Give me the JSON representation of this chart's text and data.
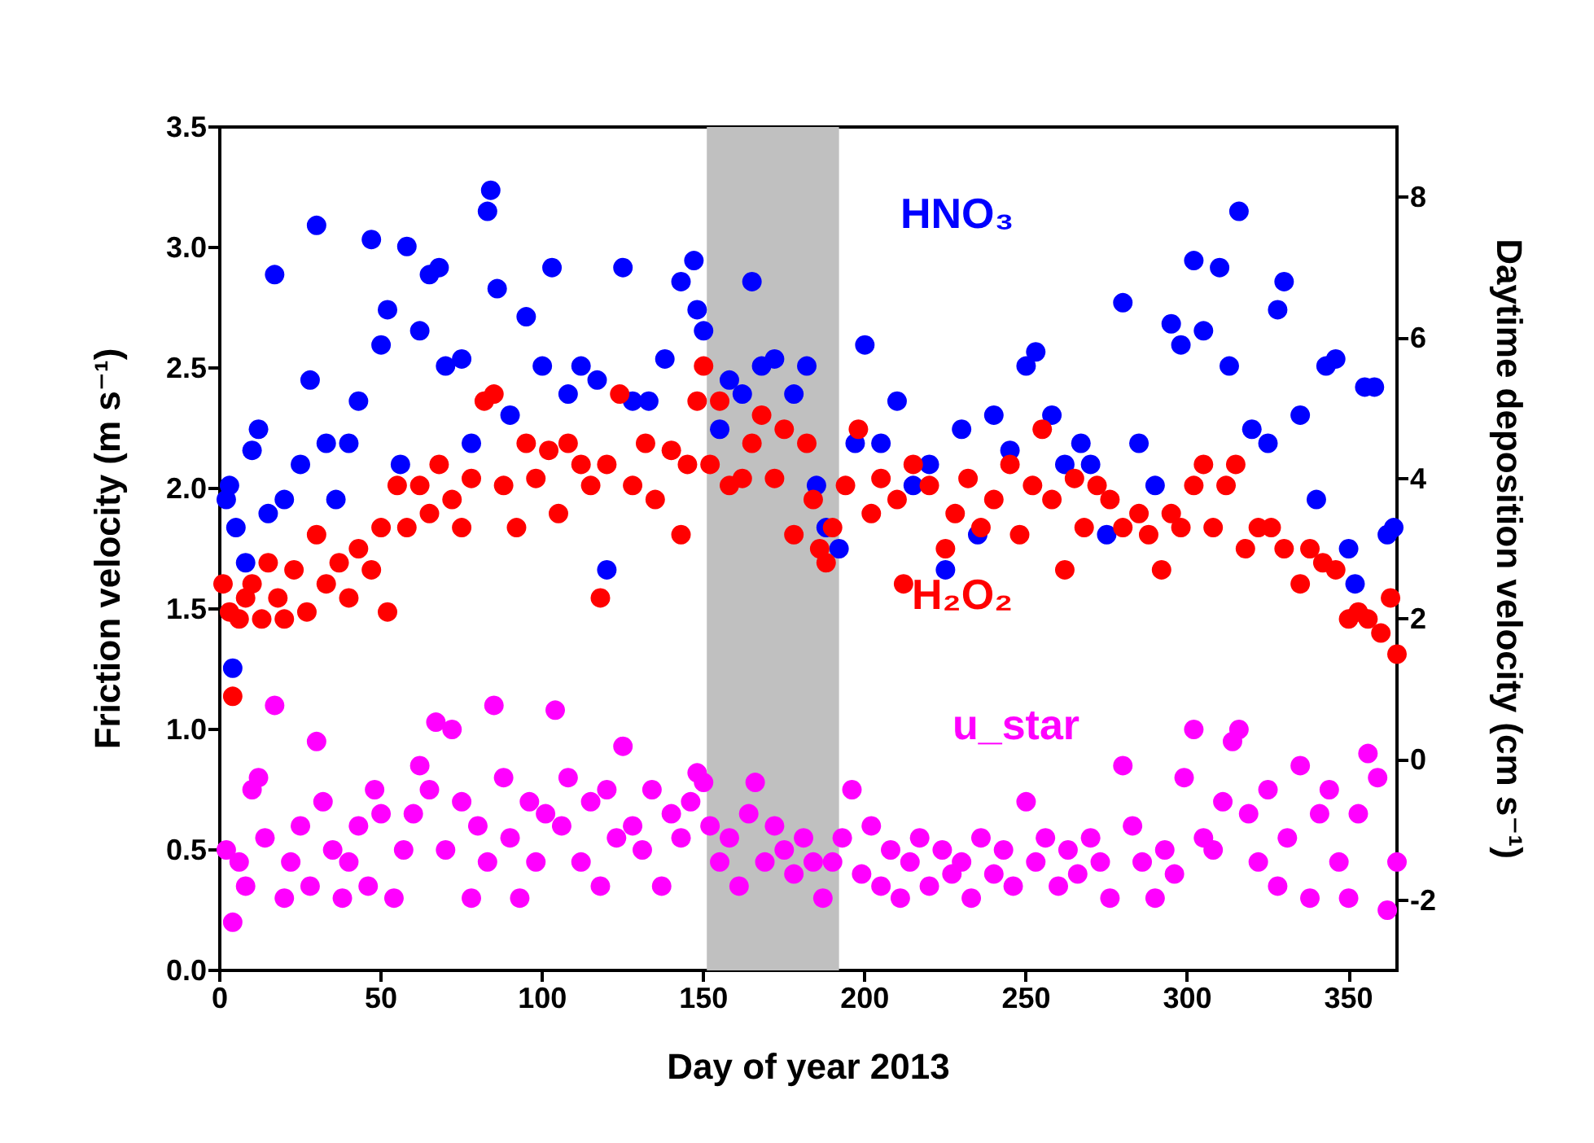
{
  "chart_data": {
    "type": "scatter",
    "xlabel": "Day of year 2013",
    "ylabel": "Friction velocity (m s⁻¹)",
    "y2label": "Daytime deposition velocity (cm s⁻¹)",
    "xlim": [
      0,
      365
    ],
    "xticks": [
      0,
      50,
      100,
      150,
      200,
      250,
      300,
      350
    ],
    "ylim": [
      0,
      3.5
    ],
    "yticks": [
      {
        "value": 0,
        "label": "0.0"
      },
      0.5,
      {
        "value": 1,
        "label": "1.0"
      },
      1.5,
      {
        "value": 2,
        "label": "2.0"
      },
      2.5,
      {
        "value": 3,
        "label": "3.0"
      },
      3.5
    ],
    "y2lim": [
      -3,
      9
    ],
    "y2ticks": [
      -2,
      0,
      2,
      4,
      6,
      8
    ],
    "grid": false,
    "legend": false,
    "marker": "circle",
    "bands": [
      {
        "axis": "x",
        "from": 151,
        "to": 192,
        "color": "#c0c0c0"
      }
    ],
    "series": [
      {
        "name": "HNO₃",
        "color": "#0000ff",
        "axis": "y2",
        "x": [
          2,
          3,
          5,
          4,
          8,
          10,
          12,
          15,
          17,
          20,
          25,
          28,
          30,
          33,
          36,
          40,
          43,
          47,
          50,
          52,
          56,
          58,
          62,
          65,
          68,
          70,
          75,
          78,
          83,
          84,
          86,
          90,
          95,
          100,
          103,
          108,
          112,
          117,
          120,
          125,
          128,
          133,
          138,
          143,
          147,
          148,
          150,
          155,
          158,
          162,
          165,
          168,
          172,
          178,
          182,
          185,
          188,
          192,
          197,
          200,
          205,
          210,
          215,
          220,
          225,
          230,
          235,
          240,
          245,
          250,
          253,
          258,
          262,
          267,
          270,
          275,
          280,
          285,
          290,
          295,
          298,
          302,
          305,
          310,
          313,
          316,
          320,
          325,
          328,
          330,
          335,
          340,
          343,
          346,
          350,
          352,
          355,
          358,
          362,
          364
        ],
        "values": [
          3.7,
          3.9,
          3.3,
          1.3,
          2.8,
          4.4,
          4.7,
          3.5,
          6.9,
          3.7,
          4.2,
          5.4,
          7.6,
          4.5,
          3.7,
          4.5,
          5.1,
          7.4,
          5.9,
          6.4,
          4.2,
          7.3,
          6.1,
          6.9,
          7.0,
          5.6,
          5.7,
          4.5,
          7.8,
          8.1,
          6.7,
          4.9,
          6.3,
          5.6,
          7.0,
          5.2,
          5.6,
          5.4,
          2.7,
          7.0,
          5.1,
          5.1,
          5.7,
          6.8,
          7.1,
          6.4,
          6.1,
          4.7,
          5.4,
          5.2,
          6.8,
          5.6,
          5.7,
          5.2,
          5.6,
          3.9,
          3.3,
          3.0,
          4.5,
          5.9,
          4.5,
          5.1,
          3.9,
          4.2,
          2.7,
          4.7,
          3.2,
          4.9,
          4.4,
          5.6,
          5.8,
          4.9,
          4.2,
          4.5,
          4.2,
          3.2,
          6.5,
          4.5,
          3.9,
          6.2,
          5.9,
          7.1,
          6.1,
          7.0,
          5.6,
          7.8,
          4.7,
          4.5,
          6.4,
          6.8,
          4.9,
          3.7,
          5.6,
          5.7,
          3.0,
          2.5,
          5.3,
          5.3,
          3.2,
          3.3
        ]
      },
      {
        "name": "H₂O₂",
        "color": "#ff0000",
        "axis": "y2",
        "x": [
          1,
          3,
          4,
          6,
          8,
          10,
          13,
          15,
          18,
          20,
          23,
          27,
          30,
          33,
          37,
          40,
          43,
          47,
          50,
          52,
          55,
          58,
          62,
          65,
          68,
          72,
          75,
          78,
          82,
          85,
          88,
          92,
          95,
          98,
          102,
          105,
          108,
          112,
          115,
          118,
          120,
          124,
          128,
          132,
          135,
          140,
          143,
          145,
          148,
          150,
          152,
          155,
          158,
          162,
          165,
          168,
          172,
          175,
          178,
          182,
          184,
          186,
          188,
          190,
          194,
          198,
          202,
          205,
          210,
          212,
          215,
          220,
          225,
          228,
          232,
          236,
          240,
          245,
          248,
          252,
          255,
          258,
          262,
          265,
          268,
          272,
          276,
          280,
          285,
          288,
          292,
          295,
          298,
          302,
          305,
          308,
          312,
          315,
          318,
          322,
          326,
          330,
          335,
          338,
          342,
          346,
          350,
          353,
          356,
          360,
          363,
          365
        ],
        "values": [
          2.5,
          2.1,
          0.9,
          2.0,
          2.3,
          2.5,
          2.0,
          2.8,
          2.3,
          2.0,
          2.7,
          2.1,
          3.2,
          2.5,
          2.8,
          2.3,
          3.0,
          2.7,
          3.3,
          2.1,
          3.9,
          3.3,
          3.9,
          3.5,
          4.2,
          3.7,
          3.3,
          4.0,
          5.1,
          5.2,
          3.9,
          3.3,
          4.5,
          4.0,
          4.4,
          3.5,
          4.5,
          4.2,
          3.9,
          2.3,
          4.2,
          5.2,
          3.9,
          4.5,
          3.7,
          4.4,
          3.2,
          4.2,
          5.1,
          5.6,
          4.2,
          5.1,
          3.9,
          4.0,
          4.5,
          4.9,
          4.0,
          4.7,
          3.2,
          4.5,
          3.7,
          3.0,
          2.8,
          3.3,
          3.9,
          4.7,
          3.5,
          4.0,
          3.7,
          2.5,
          4.2,
          3.9,
          3.0,
          3.5,
          4.0,
          3.3,
          3.7,
          4.2,
          3.2,
          3.9,
          4.7,
          3.7,
          2.7,
          4.0,
          3.3,
          3.9,
          3.7,
          3.3,
          3.5,
          3.2,
          2.7,
          3.5,
          3.3,
          3.9,
          4.2,
          3.3,
          3.9,
          4.2,
          3.0,
          3.3,
          3.3,
          3.0,
          2.5,
          3.0,
          2.8,
          2.7,
          2.0,
          2.1,
          2.0,
          1.8,
          2.3,
          1.5
        ]
      },
      {
        "name": "u_star",
        "color": "#ff00ff",
        "x": [
          2,
          4,
          6,
          8,
          10,
          12,
          14,
          17,
          20,
          22,
          25,
          28,
          30,
          32,
          35,
          38,
          40,
          43,
          46,
          48,
          50,
          54,
          57,
          60,
          62,
          65,
          67,
          70,
          72,
          75,
          78,
          80,
          83,
          85,
          88,
          90,
          93,
          96,
          98,
          101,
          104,
          106,
          108,
          112,
          115,
          118,
          120,
          123,
          125,
          128,
          131,
          134,
          137,
          140,
          143,
          146,
          148,
          150,
          152,
          155,
          158,
          161,
          164,
          166,
          169,
          172,
          175,
          178,
          181,
          184,
          187,
          190,
          193,
          196,
          199,
          202,
          205,
          208,
          211,
          214,
          217,
          220,
          224,
          227,
          230,
          233,
          236,
          240,
          243,
          246,
          250,
          253,
          256,
          260,
          263,
          266,
          270,
          273,
          276,
          280,
          283,
          286,
          290,
          293,
          296,
          299,
          302,
          305,
          308,
          311,
          314,
          316,
          319,
          322,
          325,
          328,
          331,
          335,
          338,
          341,
          344,
          347,
          350,
          353,
          356,
          359,
          362,
          365
        ],
        "values": [
          0.5,
          0.2,
          0.45,
          0.35,
          0.75,
          0.8,
          0.55,
          1.1,
          0.3,
          0.45,
          0.6,
          0.35,
          0.95,
          0.7,
          0.5,
          0.3,
          0.45,
          0.6,
          0.35,
          0.75,
          0.65,
          0.3,
          0.5,
          0.65,
          0.85,
          0.75,
          1.03,
          0.5,
          1.0,
          0.7,
          0.3,
          0.6,
          0.45,
          1.1,
          0.8,
          0.55,
          0.3,
          0.7,
          0.45,
          0.65,
          1.08,
          0.6,
          0.8,
          0.45,
          0.7,
          0.35,
          0.75,
          0.55,
          0.93,
          0.6,
          0.5,
          0.75,
          0.35,
          0.65,
          0.55,
          0.7,
          0.82,
          0.78,
          0.6,
          0.45,
          0.55,
          0.35,
          0.65,
          0.78,
          0.45,
          0.6,
          0.5,
          0.4,
          0.55,
          0.45,
          0.3,
          0.45,
          0.55,
          0.75,
          0.4,
          0.6,
          0.35,
          0.5,
          0.3,
          0.45,
          0.55,
          0.35,
          0.5,
          0.4,
          0.45,
          0.3,
          0.55,
          0.4,
          0.5,
          0.35,
          0.7,
          0.45,
          0.55,
          0.35,
          0.5,
          0.4,
          0.55,
          0.45,
          0.3,
          0.85,
          0.6,
          0.45,
          0.3,
          0.5,
          0.4,
          0.8,
          1.0,
          0.55,
          0.5,
          0.7,
          0.95,
          1.0,
          0.65,
          0.45,
          0.75,
          0.35,
          0.55,
          0.85,
          0.3,
          0.65,
          0.75,
          0.45,
          0.3,
          0.65,
          0.9,
          0.8,
          0.25,
          0.45
        ]
      }
    ]
  }
}
